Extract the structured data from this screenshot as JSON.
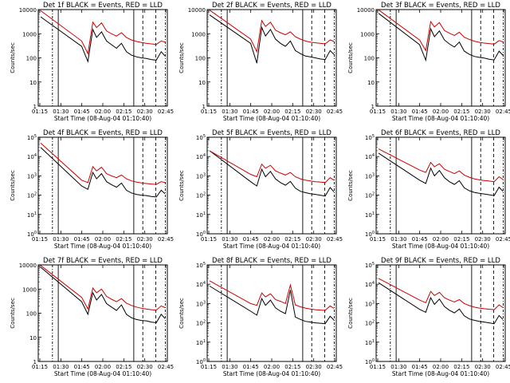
{
  "chart_data": [
    {
      "type": "line",
      "title": "Det 1f BLACK = Events, RED = LLD",
      "xlabel": "Start Time (08-Aug-04 01:10:40)",
      "ylabel": "Counts/sec",
      "xticks": [
        "01:15",
        "01:30",
        "01:45",
        "02:00",
        "02:15",
        "02:30",
        "02:45"
      ],
      "yscale": "log",
      "ylim": [
        1,
        10000
      ],
      "yticks": [
        "1",
        "10",
        "100",
        "1000",
        "10000"
      ],
      "series": [
        {
          "name": "Events",
          "color": "#000000",
          "x": [
            0.0,
            0.33,
            0.38,
            0.42,
            0.45,
            0.49,
            0.53,
            0.57,
            0.61,
            0.65,
            0.69,
            0.73,
            0.77,
            0.81,
            0.85,
            0.89,
            0.93,
            0.97,
            1.0
          ],
          "y": [
            5000,
            300,
            70,
            1500,
            700,
            1200,
            500,
            350,
            250,
            400,
            180,
            130,
            110,
            100,
            95,
            85,
            80,
            180,
            120
          ]
        },
        {
          "name": "LLD",
          "color": "#cc0000",
          "x": [
            0.0,
            0.33,
            0.38,
            0.42,
            0.45,
            0.49,
            0.53,
            0.57,
            0.61,
            0.65,
            0.69,
            0.73,
            0.77,
            0.81,
            0.85,
            0.89,
            0.93,
            0.97,
            1.0
          ],
          "y": [
            9000,
            500,
            150,
            3000,
            1800,
            2800,
            1300,
            1000,
            800,
            1100,
            700,
            550,
            480,
            430,
            400,
            380,
            360,
            500,
            450
          ]
        }
      ]
    },
    {
      "type": "line",
      "title": "Det 2f BLACK = Events, RED = LLD",
      "xlabel": "Start Time (08-Aug-04 01:10:40)",
      "ylabel": "Counts/sec",
      "xticks": [
        "01:15",
        "01:30",
        "01:45",
        "02:00",
        "02:15",
        "02:30",
        "02:45"
      ],
      "yscale": "log",
      "ylim": [
        1,
        10000
      ],
      "yticks": [
        "1",
        "10",
        "100",
        "1000",
        "10000"
      ],
      "series": [
        {
          "name": "Events",
          "color": "#000000",
          "x": [
            0.0,
            0.33,
            0.38,
            0.42,
            0.45,
            0.49,
            0.53,
            0.57,
            0.61,
            0.65,
            0.69,
            0.73,
            0.77,
            0.81,
            0.85,
            0.89,
            0.93,
            0.97,
            1.0
          ],
          "y": [
            6000,
            400,
            60,
            1800,
            800,
            1500,
            600,
            400,
            300,
            500,
            200,
            150,
            120,
            110,
            100,
            90,
            85,
            200,
            140
          ]
        },
        {
          "name": "LLD",
          "color": "#cc0000",
          "x": [
            0.0,
            0.33,
            0.38,
            0.42,
            0.45,
            0.49,
            0.53,
            0.57,
            0.61,
            0.65,
            0.69,
            0.73,
            0.77,
            0.81,
            0.85,
            0.89,
            0.93,
            0.97,
            1.0
          ],
          "y": [
            9500,
            600,
            180,
            3500,
            2000,
            3000,
            1400,
            1100,
            900,
            1200,
            750,
            600,
            500,
            450,
            420,
            400,
            380,
            550,
            480
          ]
        }
      ]
    },
    {
      "type": "line",
      "title": "Det 3f BLACK = Events, RED = LLD",
      "xlabel": "Start Time (08-Aug-04 01:10:40)",
      "ylabel": "Counts/sec",
      "xticks": [
        "01:15",
        "01:30",
        "01:45",
        "02:00",
        "02:15",
        "02:30",
        "02:45"
      ],
      "yscale": "log",
      "ylim": [
        1,
        10000
      ],
      "yticks": [
        "1",
        "10",
        "100",
        "1000",
        "10000"
      ],
      "series": [
        {
          "name": "Events",
          "color": "#000000",
          "x": [
            0.0,
            0.33,
            0.38,
            0.42,
            0.45,
            0.49,
            0.53,
            0.57,
            0.61,
            0.65,
            0.69,
            0.73,
            0.77,
            0.81,
            0.85,
            0.89,
            0.93,
            0.97,
            1.0
          ],
          "y": [
            7000,
            350,
            80,
            1600,
            750,
            1300,
            550,
            380,
            280,
            450,
            190,
            140,
            115,
            105,
            98,
            88,
            82,
            190,
            130
          ]
        },
        {
          "name": "LLD",
          "color": "#cc0000",
          "x": [
            0.0,
            0.33,
            0.38,
            0.42,
            0.45,
            0.49,
            0.53,
            0.57,
            0.61,
            0.65,
            0.69,
            0.73,
            0.77,
            0.81,
            0.85,
            0.89,
            0.93,
            0.97,
            1.0
          ],
          "y": [
            9800,
            550,
            200,
            3200,
            1900,
            2900,
            1350,
            1050,
            850,
            1150,
            720,
            580,
            490,
            440,
            410,
            390,
            370,
            520,
            460
          ]
        }
      ]
    },
    {
      "type": "line",
      "title": "Det 4f BLACK = Events, RED = LLD",
      "xlabel": "Start Time (08-Aug-04 01:10:40)",
      "ylabel": "Counts/sec",
      "xticks": [
        "01:15",
        "01:30",
        "01:45",
        "02:00",
        "02:15",
        "02:30",
        "02:45"
      ],
      "yscale": "log",
      "ylim": [
        1,
        100000
      ],
      "yticks": [
        "10^0",
        "10^1",
        "10^2",
        "10^3",
        "10^4",
        "10^5"
      ],
      "series": [
        {
          "name": "Events",
          "color": "#000000",
          "x": [
            0.0,
            0.33,
            0.38,
            0.42,
            0.45,
            0.49,
            0.53,
            0.57,
            0.61,
            0.65,
            0.69,
            0.73,
            0.77,
            0.81,
            0.85,
            0.89,
            0.93,
            0.97,
            1.0
          ],
          "y": [
            30000,
            300,
            200,
            1500,
            700,
            1300,
            500,
            350,
            260,
            420,
            180,
            130,
            110,
            100,
            95,
            85,
            80,
            180,
            120
          ]
        },
        {
          "name": "LLD",
          "color": "#cc0000",
          "x": [
            0.0,
            0.33,
            0.38,
            0.42,
            0.45,
            0.49,
            0.53,
            0.57,
            0.61,
            0.65,
            0.69,
            0.73,
            0.77,
            0.81,
            0.85,
            0.89,
            0.93,
            0.97,
            1.0
          ],
          "y": [
            50000,
            600,
            450,
            3000,
            1800,
            2800,
            1300,
            1000,
            800,
            1100,
            700,
            550,
            480,
            430,
            400,
            380,
            360,
            500,
            450
          ]
        }
      ]
    },
    {
      "type": "line",
      "title": "Det 5f BLACK = Events, RED = LLD",
      "xlabel": "Start Time (08-Aug-04 01:10:40)",
      "ylabel": "Counts/sec",
      "xticks": [
        "01:15",
        "01:30",
        "01:45",
        "02:00",
        "02:15",
        "02:30",
        "02:45"
      ],
      "yscale": "log",
      "ylim": [
        1,
        100000
      ],
      "yticks": [
        "10^0",
        "10^1",
        "10^2",
        "10^3",
        "10^4",
        "10^5"
      ],
      "series": [
        {
          "name": "Events",
          "color": "#000000",
          "x": [
            0.0,
            0.33,
            0.38,
            0.42,
            0.45,
            0.49,
            0.53,
            0.57,
            0.61,
            0.65,
            0.69,
            0.73,
            0.77,
            0.81,
            0.85,
            0.89,
            0.93,
            0.97,
            1.0
          ],
          "y": [
            20000,
            500,
            300,
            2200,
            900,
            1700,
            700,
            450,
            330,
            520,
            230,
            160,
            135,
            120,
            110,
            100,
            90,
            250,
            150
          ]
        },
        {
          "name": "LLD",
          "color": "#cc0000",
          "x": [
            0.0,
            0.33,
            0.38,
            0.42,
            0.45,
            0.49,
            0.53,
            0.57,
            0.61,
            0.65,
            0.69,
            0.73,
            0.77,
            0.81,
            0.85,
            0.89,
            0.93,
            0.97,
            1.0
          ],
          "y": [
            20000,
            1200,
            900,
            4000,
            2500,
            3500,
            1800,
            1400,
            1100,
            1500,
            900,
            700,
            600,
            550,
            500,
            480,
            450,
            800,
            600
          ]
        }
      ]
    },
    {
      "type": "line",
      "title": "Det 6f BLACK = Events, RED = LLD",
      "xlabel": "Start Time (08-Aug-04 01:10:40)",
      "ylabel": "Counts/sec",
      "xticks": [
        "01:15",
        "01:30",
        "01:45",
        "02:00",
        "02:15",
        "02:30",
        "02:45"
      ],
      "yscale": "log",
      "ylim": [
        1,
        100000
      ],
      "yticks": [
        "10^0",
        "10^1",
        "10^2",
        "10^3",
        "10^4",
        "10^5"
      ],
      "series": [
        {
          "name": "Events",
          "color": "#000000",
          "x": [
            0.0,
            0.33,
            0.38,
            0.42,
            0.45,
            0.49,
            0.53,
            0.57,
            0.61,
            0.65,
            0.69,
            0.73,
            0.77,
            0.81,
            0.85,
            0.89,
            0.93,
            0.97,
            1.0
          ],
          "y": [
            15000,
            600,
            400,
            2500,
            1000,
            1900,
            800,
            500,
            360,
            560,
            240,
            170,
            140,
            125,
            115,
            105,
            95,
            260,
            160
          ]
        },
        {
          "name": "LLD",
          "color": "#cc0000",
          "x": [
            0.0,
            0.33,
            0.38,
            0.42,
            0.45,
            0.49,
            0.53,
            0.57,
            0.61,
            0.65,
            0.69,
            0.73,
            0.77,
            0.81,
            0.85,
            0.89,
            0.93,
            0.97,
            1.0
          ],
          "y": [
            25000,
            2000,
            1500,
            5000,
            3000,
            4200,
            2200,
            1700,
            1300,
            1800,
            1100,
            850,
            700,
            620,
            570,
            540,
            500,
            900,
            650
          ]
        }
      ]
    },
    {
      "type": "line",
      "title": "Det 7f BLACK = Events, RED = LLD",
      "xlabel": "Start Time (08-Aug-04 01:10:40)",
      "ylabel": "Counts/sec",
      "xticks": [
        "01:15",
        "01:30",
        "01:45",
        "02:00",
        "02:15",
        "02:30",
        "02:45"
      ],
      "yscale": "log",
      "ylim": [
        1,
        10000
      ],
      "yticks": [
        "1",
        "10",
        "100",
        "1000",
        "10000"
      ],
      "series": [
        {
          "name": "Events",
          "color": "#000000",
          "x": [
            0.0,
            0.33,
            0.38,
            0.42,
            0.45,
            0.49,
            0.53,
            0.57,
            0.61,
            0.65,
            0.69,
            0.73,
            0.77,
            0.81,
            0.85,
            0.89,
            0.93,
            0.97,
            1.0
          ],
          "y": [
            8000,
            300,
            90,
            700,
            350,
            600,
            250,
            180,
            130,
            220,
            90,
            65,
            55,
            50,
            48,
            43,
            40,
            90,
            60
          ]
        },
        {
          "name": "LLD",
          "color": "#cc0000",
          "x": [
            0.0,
            0.33,
            0.38,
            0.42,
            0.45,
            0.49,
            0.53,
            0.57,
            0.61,
            0.65,
            0.69,
            0.73,
            0.77,
            0.81,
            0.85,
            0.89,
            0.93,
            0.97,
            1.0
          ],
          "y": [
            9500,
            450,
            150,
            1100,
            700,
            1000,
            500,
            380,
            300,
            400,
            260,
            210,
            180,
            160,
            150,
            140,
            135,
            200,
            170
          ]
        }
      ]
    },
    {
      "type": "line",
      "title": "Det 8f BLACK = Events, RED = LLD",
      "xlabel": "Start Time (08-Aug-04 01:10:40)",
      "ylabel": "Counts/sec",
      "xticks": [
        "01:15",
        "01:30",
        "01:45",
        "02:00",
        "02:15",
        "02:30",
        "02:45"
      ],
      "yscale": "log",
      "ylim": [
        1,
        100000
      ],
      "yticks": [
        "10^0",
        "10^1",
        "10^2",
        "10^3",
        "10^4",
        "10^5"
      ],
      "series": [
        {
          "name": "Events",
          "color": "#000000",
          "x": [
            0.0,
            0.33,
            0.38,
            0.42,
            0.45,
            0.49,
            0.53,
            0.57,
            0.61,
            0.65,
            0.69,
            0.73,
            0.77,
            0.81,
            0.85,
            0.89,
            0.93,
            0.97,
            1.0
          ],
          "y": [
            8000,
            400,
            250,
            1800,
            800,
            1500,
            600,
            400,
            300,
            5000,
            200,
            150,
            120,
            110,
            100,
            95,
            90,
            220,
            140
          ]
        },
        {
          "name": "LLD",
          "color": "#cc0000",
          "x": [
            0.0,
            0.33,
            0.38,
            0.42,
            0.45,
            0.49,
            0.53,
            0.57,
            0.61,
            0.65,
            0.69,
            0.73,
            0.77,
            0.81,
            0.85,
            0.89,
            0.93,
            0.97,
            1.0
          ],
          "y": [
            15000,
            1000,
            800,
            3500,
            2200,
            3200,
            1600,
            1300,
            1000,
            9000,
            850,
            680,
            580,
            520,
            480,
            460,
            440,
            750,
            560
          ]
        }
      ]
    },
    {
      "type": "line",
      "title": "Det 9f BLACK = Events, RED = LLD",
      "xlabel": "Start Time (08-Aug-04 01:10:40)",
      "ylabel": "Counts/sec",
      "xticks": [
        "01:15",
        "01:30",
        "01:45",
        "02:00",
        "02:15",
        "02:30",
        "02:45"
      ],
      "yscale": "log",
      "ylim": [
        1,
        100000
      ],
      "yticks": [
        "10^0",
        "10^1",
        "10^2",
        "10^3",
        "10^4",
        "10^5"
      ],
      "series": [
        {
          "name": "Events",
          "color": "#000000",
          "x": [
            0.0,
            0.33,
            0.38,
            0.42,
            0.45,
            0.49,
            0.53,
            0.57,
            0.61,
            0.65,
            0.69,
            0.73,
            0.77,
            0.81,
            0.85,
            0.89,
            0.93,
            0.97,
            1.0
          ],
          "y": [
            12000,
            500,
            350,
            2000,
            900,
            1700,
            700,
            450,
            330,
            520,
            230,
            160,
            135,
            120,
            110,
            100,
            90,
            240,
            150
          ]
        },
        {
          "name": "LLD",
          "color": "#cc0000",
          "x": [
            0.0,
            0.33,
            0.38,
            0.42,
            0.45,
            0.49,
            0.53,
            0.57,
            0.61,
            0.65,
            0.69,
            0.73,
            0.77,
            0.81,
            0.85,
            0.89,
            0.93,
            0.97,
            1.0
          ],
          "y": [
            20000,
            1500,
            1100,
            4200,
            2600,
            3800,
            2000,
            1500,
            1200,
            1600,
            1000,
            780,
            650,
            580,
            540,
            510,
            480,
            850,
            620
          ]
        }
      ]
    }
  ]
}
